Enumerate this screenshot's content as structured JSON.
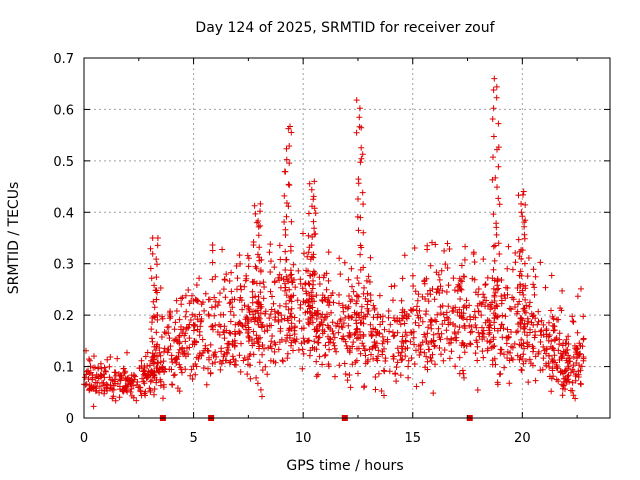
{
  "chart_data": {
    "type": "scatter",
    "title": "Day 124 of 2025, SRMTID for receiver zouf",
    "xlabel": "GPS time / hours",
    "ylabel": "SRMTID / TECUs",
    "xlim": [
      0,
      24
    ],
    "ylim": [
      0,
      0.7
    ],
    "xticks": [
      0,
      5,
      10,
      15,
      20
    ],
    "yticks": [
      0,
      0.1,
      0.2,
      0.3,
      0.4,
      0.5,
      0.6,
      0.7
    ],
    "xtick_labels": [
      "0",
      "5",
      "10",
      "15",
      "20"
    ],
    "ytick_labels": [
      "0",
      "0.1",
      "0.2",
      "0.3",
      "0.4",
      "0.5",
      "0.6",
      "0.7"
    ],
    "grid": true,
    "marker": "+",
    "color": "#e00000",
    "baseline_envelope": {
      "x": [
        0,
        1,
        2,
        3,
        3.5,
        4,
        5,
        6,
        7,
        8,
        9,
        10,
        11,
        12,
        13,
        14,
        15,
        16,
        17,
        18,
        19,
        20,
        21,
        22,
        22.8
      ],
      "y": [
        0.08,
        0.07,
        0.07,
        0.08,
        0.1,
        0.13,
        0.16,
        0.18,
        0.17,
        0.17,
        0.19,
        0.2,
        0.18,
        0.17,
        0.16,
        0.14,
        0.17,
        0.19,
        0.19,
        0.18,
        0.18,
        0.17,
        0.14,
        0.1,
        0.12
      ]
    },
    "peak_clusters": [
      {
        "x": 3.2,
        "y_max": 0.35
      },
      {
        "x": 7.9,
        "y_max": 0.42
      },
      {
        "x": 9.3,
        "y_max": 0.57
      },
      {
        "x": 10.4,
        "y_max": 0.46
      },
      {
        "x": 12.6,
        "y_max": 0.62
      },
      {
        "x": 18.8,
        "y_max": 0.66
      },
      {
        "x": 20.0,
        "y_max": 0.45
      }
    ],
    "gap_markers_x": [
      3.6,
      5.8,
      11.9,
      17.6
    ]
  }
}
